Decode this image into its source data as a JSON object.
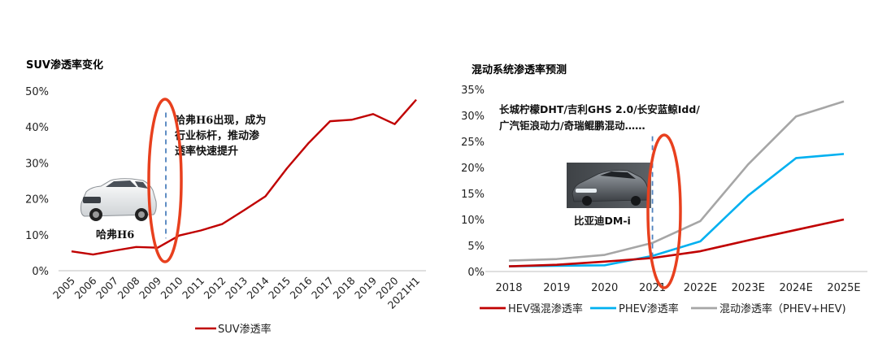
{
  "chart_data": [
    {
      "type": "line",
      "title": "SUV渗透率变化",
      "categories": [
        "2005",
        "2006",
        "2007",
        "2008",
        "2009",
        "2010",
        "2011",
        "2012",
        "2013",
        "2014",
        "2015",
        "2016",
        "2017",
        "2018",
        "2019",
        "2020",
        "2021H1"
      ],
      "series": [
        {
          "name": "SUV渗透率",
          "color": "#c00000",
          "values": [
            0.054,
            0.045,
            0.056,
            0.066,
            0.064,
            0.098,
            0.112,
            0.13,
            0.168,
            0.207,
            0.285,
            0.355,
            0.416,
            0.42,
            0.436,
            0.408,
            0.476
          ]
        }
      ],
      "yticks": [
        "0%",
        "10%",
        "20%",
        "30%",
        "40%",
        "50%"
      ],
      "ylim": [
        0,
        0.5
      ],
      "grid": false,
      "legend_position": "bottom",
      "annotations": {
        "text_lines": [
          "哈弗H6出现，成为",
          "行业标杆，推动渗",
          "透率快速提升"
        ],
        "car_label": "哈弗H6",
        "marker_x": "2009",
        "marker_range": [
          0.09,
          0.44
        ],
        "car_image": "white-suv-photo"
      }
    },
    {
      "type": "line",
      "title": "混动系统渗透率预测",
      "categories": [
        "2018",
        "2019",
        "2020",
        "2021",
        "2022E",
        "2023E",
        "2024E",
        "2025E"
      ],
      "series": [
        {
          "name": "HEV强混渗透率",
          "color": "#c00000",
          "values": [
            0.01,
            0.013,
            0.019,
            0.026,
            0.039,
            0.06,
            0.08,
            0.1
          ]
        },
        {
          "name": "PHEV渗透率",
          "color": "#00b0f0",
          "values": [
            0.01,
            0.011,
            0.012,
            0.03,
            0.058,
            0.146,
            0.218,
            0.226
          ]
        },
        {
          "name": "混动渗透率（PHEV+HEV)",
          "color": "#a6a6a6",
          "values": [
            0.021,
            0.024,
            0.032,
            0.055,
            0.097,
            0.206,
            0.298,
            0.327
          ]
        }
      ],
      "yticks": [
        "0%",
        "5%",
        "10%",
        "15%",
        "20%",
        "25%",
        "30%",
        "35%"
      ],
      "ylim": [
        0,
        0.35
      ],
      "grid": false,
      "legend_position": "bottom",
      "annotations": {
        "text_lines": [
          "长城柠檬DHT/吉利GHS 2.0/长安蓝鲸Idd/",
          "广汽钜浪动力/奇瑞鲲鹏混动……"
        ],
        "car_label": "比亚迪DM-i",
        "marker_x": "2021",
        "marker_range": [
          0.025,
          0.26
        ],
        "car_image": "dark-sedan-photo"
      }
    }
  ]
}
